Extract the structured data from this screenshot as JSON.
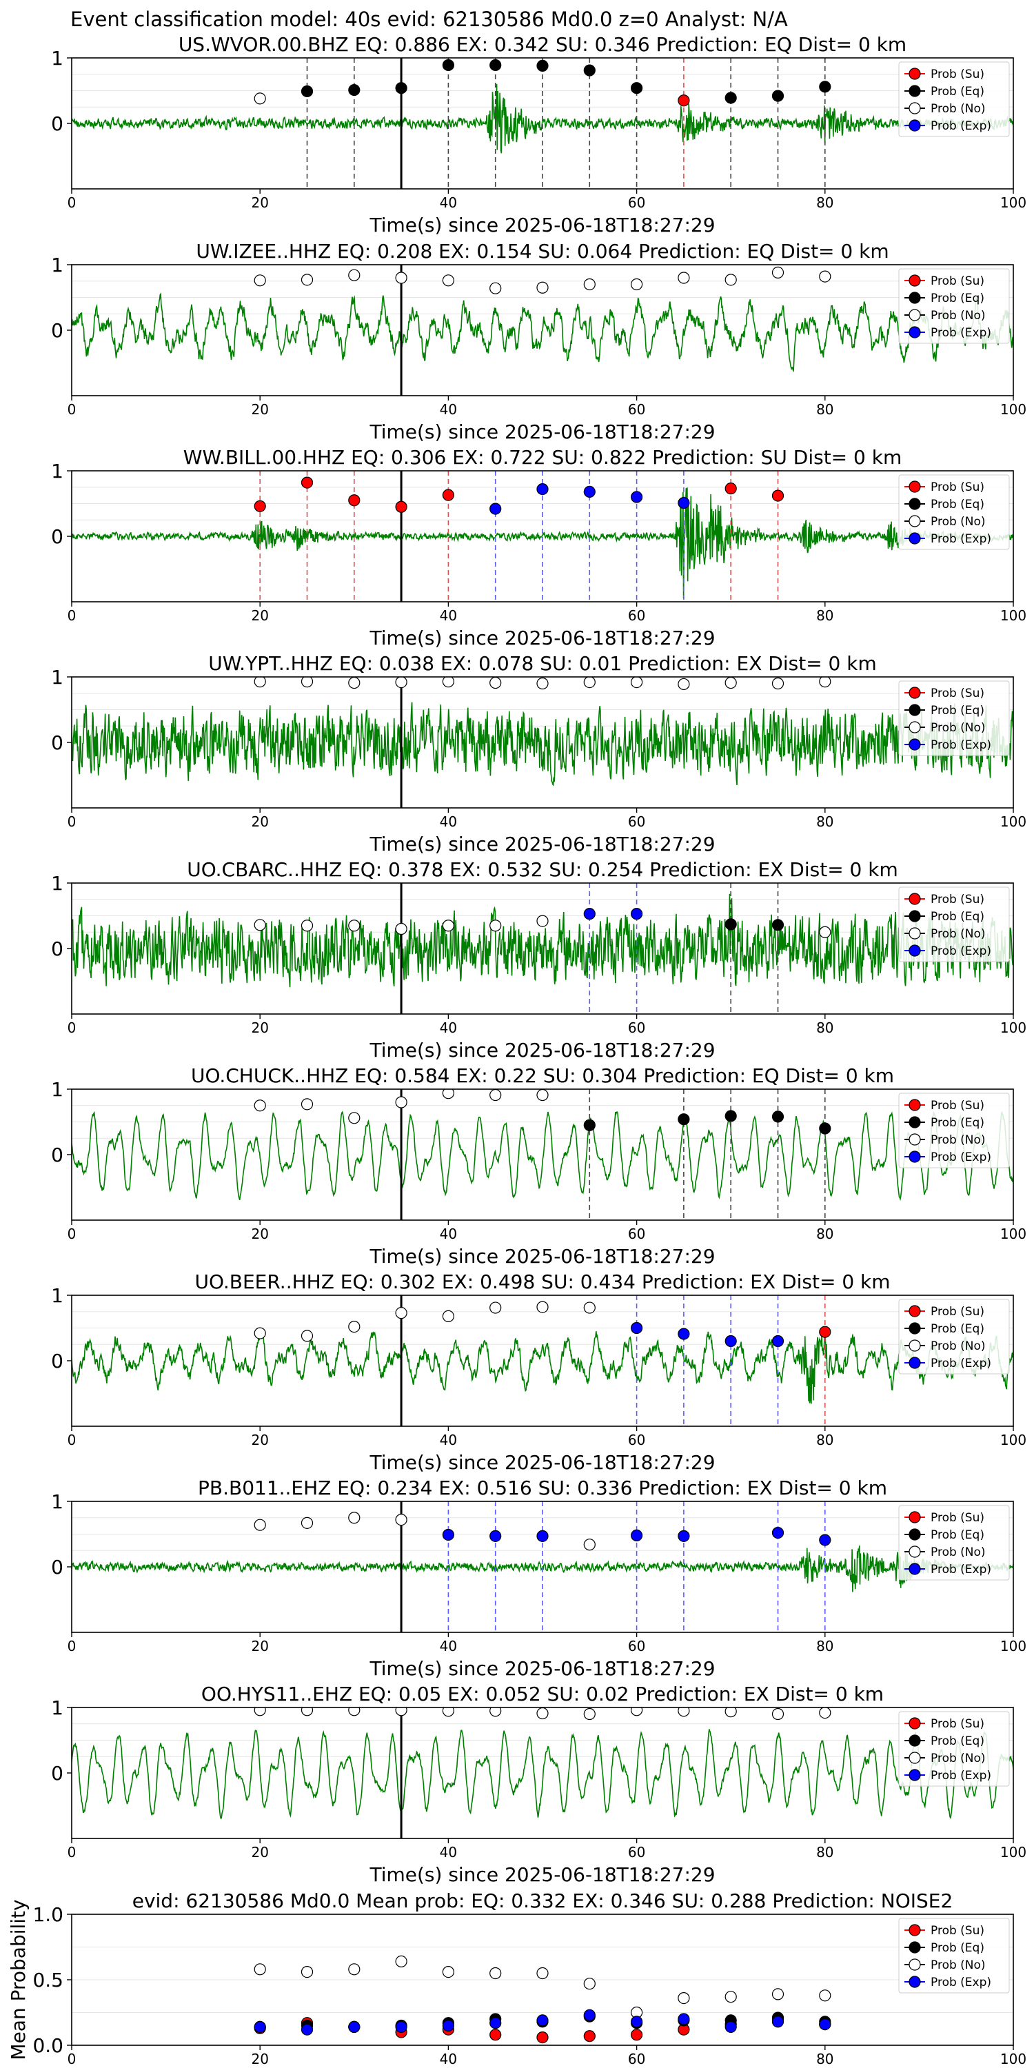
{
  "page_title": "Event classification model: 40s evid: 62130586 Md0.0 z=0 Analyst: N/A",
  "x_axis_label": "Time(s) since 2025-06-18T18:27:29",
  "legend": [
    "Prob (Su)",
    "Prob (Eq)",
    "Prob (No)",
    "Prob (Exp)"
  ],
  "colors": {
    "trace": "#008000",
    "su": "#ff0000",
    "eq": "#000000",
    "no": "#ffffff",
    "exp": "#0000ff",
    "su_line": "#e05050",
    "eq_line": "#444444",
    "exp_line": "#5a5aff"
  },
  "chart_data": [
    {
      "type": "scatter",
      "title": "US.WVOR.00.BHZ   EQ: 0.886  EX: 0.342  SU: 0.346   Prediction: EQ    Dist= 0 km",
      "xlim": [
        0,
        100
      ],
      "ylim": [
        -1,
        1
      ],
      "yticks": [
        "1",
        "0"
      ],
      "xticks": [
        "0",
        "20",
        "40",
        "60",
        "80",
        "100"
      ],
      "xlabel": "Time(s) since 2025-06-18T18:27:29",
      "legend_position": "top-right",
      "origin_line_x": 35,
      "waveform": {
        "amp": 0.07,
        "style": "noise",
        "bursts": [
          [
            45,
            0.7
          ],
          [
            65,
            0.35
          ],
          [
            80,
            0.35
          ]
        ]
      },
      "points": [
        {
          "x": 20,
          "y": 0.38,
          "class": "no"
        },
        {
          "x": 25,
          "y": 0.49,
          "class": "eq"
        },
        {
          "x": 30,
          "y": 0.51,
          "class": "eq"
        },
        {
          "x": 35,
          "y": 0.54,
          "class": "eq"
        },
        {
          "x": 40,
          "y": 0.89,
          "class": "eq"
        },
        {
          "x": 45,
          "y": 0.89,
          "class": "eq"
        },
        {
          "x": 50,
          "y": 0.88,
          "class": "eq"
        },
        {
          "x": 55,
          "y": 0.81,
          "class": "eq"
        },
        {
          "x": 60,
          "y": 0.54,
          "class": "eq"
        },
        {
          "x": 65,
          "y": 0.35,
          "class": "su"
        },
        {
          "x": 70,
          "y": 0.39,
          "class": "eq"
        },
        {
          "x": 75,
          "y": 0.42,
          "class": "eq"
        },
        {
          "x": 80,
          "y": 0.56,
          "class": "eq"
        }
      ]
    },
    {
      "type": "scatter",
      "title": "UW.IZEE..HHZ  EQ: 0.208  EX: 0.154  SU: 0.064   Prediction: EQ    Dist= 0 km",
      "xlim": [
        0,
        100
      ],
      "ylim": [
        -1,
        1
      ],
      "yticks": [
        "1",
        "0"
      ],
      "xticks": [
        "0",
        "20",
        "40",
        "60",
        "80",
        "100"
      ],
      "xlabel": "Time(s) since 2025-06-18T18:27:29",
      "legend_position": "top-right",
      "origin_line_x": 35,
      "waveform": {
        "amp": 0.42,
        "style": "wave",
        "bursts": []
      },
      "points": [
        {
          "x": 20,
          "y": 0.76,
          "class": "no"
        },
        {
          "x": 25,
          "y": 0.77,
          "class": "no"
        },
        {
          "x": 30,
          "y": 0.84,
          "class": "no"
        },
        {
          "x": 35,
          "y": 0.8,
          "class": "no"
        },
        {
          "x": 40,
          "y": 0.76,
          "class": "no"
        },
        {
          "x": 45,
          "y": 0.64,
          "class": "no"
        },
        {
          "x": 50,
          "y": 0.65,
          "class": "no"
        },
        {
          "x": 55,
          "y": 0.7,
          "class": "no"
        },
        {
          "x": 60,
          "y": 0.7,
          "class": "no"
        },
        {
          "x": 65,
          "y": 0.8,
          "class": "no"
        },
        {
          "x": 70,
          "y": 0.77,
          "class": "no"
        },
        {
          "x": 75,
          "y": 0.88,
          "class": "no"
        },
        {
          "x": 80,
          "y": 0.82,
          "class": "no"
        }
      ]
    },
    {
      "type": "scatter",
      "title": "WW.BILL.00.HHZ   EQ: 0.306  EX: 0.722  SU: 0.822   Prediction: SU    Dist= 0 km",
      "xlim": [
        0,
        100
      ],
      "ylim": [
        -1,
        1
      ],
      "yticks": [
        "1",
        "0"
      ],
      "xticks": [
        "0",
        "20",
        "40",
        "60",
        "80",
        "100"
      ],
      "xlabel": "Time(s) since 2025-06-18T18:27:29",
      "legend_position": "top-right",
      "origin_line_x": 35,
      "waveform": {
        "amp": 0.05,
        "style": "noise",
        "bursts": [
          [
            20,
            0.25
          ],
          [
            24,
            0.2
          ],
          [
            65,
            0.95
          ],
          [
            68,
            0.6
          ],
          [
            78,
            0.25
          ],
          [
            87,
            0.25
          ]
        ]
      },
      "points": [
        {
          "x": 20,
          "y": 0.46,
          "class": "su"
        },
        {
          "x": 25,
          "y": 0.82,
          "class": "su"
        },
        {
          "x": 30,
          "y": 0.55,
          "class": "su"
        },
        {
          "x": 35,
          "y": 0.45,
          "class": "su"
        },
        {
          "x": 40,
          "y": 0.63,
          "class": "su"
        },
        {
          "x": 45,
          "y": 0.42,
          "class": "exp"
        },
        {
          "x": 50,
          "y": 0.72,
          "class": "exp"
        },
        {
          "x": 55,
          "y": 0.68,
          "class": "exp"
        },
        {
          "x": 60,
          "y": 0.6,
          "class": "exp"
        },
        {
          "x": 65,
          "y": 0.51,
          "class": "exp"
        },
        {
          "x": 70,
          "y": 0.73,
          "class": "su"
        },
        {
          "x": 75,
          "y": 0.62,
          "class": "su"
        }
      ]
    },
    {
      "type": "scatter",
      "title": "UW.YPT..HHZ   EQ: 0.038  EX: 0.078  SU: 0.01   Prediction: EX    Dist= 0 km",
      "xlim": [
        0,
        100
      ],
      "ylim": [
        -1,
        1
      ],
      "yticks": [
        "1",
        "0"
      ],
      "xticks": [
        "0",
        "20",
        "40",
        "60",
        "80",
        "100"
      ],
      "xlabel": "Time(s) since 2025-06-18T18:27:29",
      "legend_position": "top-right",
      "origin_line_x": 35,
      "waveform": {
        "amp": 0.45,
        "style": "noise",
        "bursts": []
      },
      "points": [
        {
          "x": 20,
          "y": 0.93,
          "class": "no"
        },
        {
          "x": 25,
          "y": 0.93,
          "class": "no"
        },
        {
          "x": 30,
          "y": 0.91,
          "class": "no"
        },
        {
          "x": 35,
          "y": 0.92,
          "class": "no"
        },
        {
          "x": 40,
          "y": 0.93,
          "class": "no"
        },
        {
          "x": 45,
          "y": 0.91,
          "class": "no"
        },
        {
          "x": 50,
          "y": 0.9,
          "class": "no"
        },
        {
          "x": 55,
          "y": 0.92,
          "class": "no"
        },
        {
          "x": 60,
          "y": 0.92,
          "class": "no"
        },
        {
          "x": 65,
          "y": 0.89,
          "class": "no"
        },
        {
          "x": 70,
          "y": 0.91,
          "class": "no"
        },
        {
          "x": 75,
          "y": 0.9,
          "class": "no"
        },
        {
          "x": 80,
          "y": 0.93,
          "class": "no"
        }
      ]
    },
    {
      "type": "scatter",
      "title": "UO.CBARC..HHZ   EQ: 0.378  EX: 0.532  SU: 0.254   Prediction: EX    Dist= 0 km",
      "xlim": [
        0,
        100
      ],
      "ylim": [
        -1,
        1
      ],
      "yticks": [
        "1",
        "0"
      ],
      "xticks": [
        "0",
        "20",
        "40",
        "60",
        "80",
        "100"
      ],
      "xlabel": "Time(s) since 2025-06-18T18:27:29",
      "legend_position": "top-right",
      "origin_line_x": 35,
      "waveform": {
        "amp": 0.45,
        "style": "noise",
        "bursts": [
          [
            70,
            0.5
          ]
        ]
      },
      "points": [
        {
          "x": 20,
          "y": 0.36,
          "class": "no"
        },
        {
          "x": 25,
          "y": 0.35,
          "class": "no"
        },
        {
          "x": 30,
          "y": 0.35,
          "class": "no"
        },
        {
          "x": 35,
          "y": 0.3,
          "class": "no"
        },
        {
          "x": 40,
          "y": 0.35,
          "class": "no"
        },
        {
          "x": 45,
          "y": 0.35,
          "class": "no"
        },
        {
          "x": 50,
          "y": 0.42,
          "class": "no"
        },
        {
          "x": 55,
          "y": 0.53,
          "class": "exp"
        },
        {
          "x": 60,
          "y": 0.53,
          "class": "exp"
        },
        {
          "x": 70,
          "y": 0.37,
          "class": "eq"
        },
        {
          "x": 75,
          "y": 0.36,
          "class": "eq"
        },
        {
          "x": 80,
          "y": 0.25,
          "class": "no"
        }
      ]
    },
    {
      "type": "scatter",
      "title": "UO.CHUCK..HHZ   EQ: 0.584  EX: 0.22  SU: 0.304   Prediction: EQ    Dist= 0 km",
      "xlim": [
        0,
        100
      ],
      "ylim": [
        -1,
        1
      ],
      "yticks": [
        "1",
        "0"
      ],
      "xticks": [
        "0",
        "20",
        "40",
        "60",
        "80",
        "100"
      ],
      "xlabel": "Time(s) since 2025-06-18T18:27:29",
      "legend_position": "top-right",
      "origin_line_x": 35,
      "waveform": {
        "amp": 0.55,
        "style": "smooth",
        "bursts": []
      },
      "points": [
        {
          "x": 20,
          "y": 0.75,
          "class": "no"
        },
        {
          "x": 25,
          "y": 0.77,
          "class": "no"
        },
        {
          "x": 30,
          "y": 0.56,
          "class": "no"
        },
        {
          "x": 35,
          "y": 0.8,
          "class": "no"
        },
        {
          "x": 40,
          "y": 0.94,
          "class": "no"
        },
        {
          "x": 45,
          "y": 0.91,
          "class": "no"
        },
        {
          "x": 50,
          "y": 0.91,
          "class": "no"
        },
        {
          "x": 55,
          "y": 0.45,
          "class": "eq"
        },
        {
          "x": 65,
          "y": 0.54,
          "class": "eq"
        },
        {
          "x": 70,
          "y": 0.59,
          "class": "eq"
        },
        {
          "x": 75,
          "y": 0.58,
          "class": "eq"
        },
        {
          "x": 80,
          "y": 0.4,
          "class": "eq"
        }
      ]
    },
    {
      "type": "scatter",
      "title": "UO.BEER..HHZ   EQ: 0.302  EX: 0.498  SU: 0.434   Prediction: EX    Dist= 0 km",
      "xlim": [
        0,
        100
      ],
      "ylim": [
        -1,
        1
      ],
      "yticks": [
        "1",
        "0"
      ],
      "xticks": [
        "0",
        "20",
        "40",
        "60",
        "80",
        "100"
      ],
      "xlabel": "Time(s) since 2025-06-18T18:27:29",
      "legend_position": "top-right",
      "origin_line_x": 35,
      "waveform": {
        "amp": 0.35,
        "style": "wave",
        "bursts": [
          [
            78,
            0.5
          ]
        ]
      },
      "points": [
        {
          "x": 20,
          "y": 0.42,
          "class": "no"
        },
        {
          "x": 25,
          "y": 0.38,
          "class": "no"
        },
        {
          "x": 30,
          "y": 0.52,
          "class": "no"
        },
        {
          "x": 35,
          "y": 0.73,
          "class": "no"
        },
        {
          "x": 40,
          "y": 0.68,
          "class": "no"
        },
        {
          "x": 45,
          "y": 0.81,
          "class": "no"
        },
        {
          "x": 50,
          "y": 0.82,
          "class": "no"
        },
        {
          "x": 55,
          "y": 0.81,
          "class": "no"
        },
        {
          "x": 60,
          "y": 0.5,
          "class": "exp"
        },
        {
          "x": 65,
          "y": 0.41,
          "class": "exp"
        },
        {
          "x": 70,
          "y": 0.3,
          "class": "exp"
        },
        {
          "x": 75,
          "y": 0.3,
          "class": "exp"
        },
        {
          "x": 80,
          "y": 0.44,
          "class": "su"
        }
      ]
    },
    {
      "type": "scatter",
      "title": "PB.B011..EHZ   EQ: 0.234  EX: 0.516  SU: 0.336   Prediction: EX    Dist= 0 km",
      "xlim": [
        0,
        100
      ],
      "ylim": [
        -1,
        1
      ],
      "yticks": [
        "1",
        "0"
      ],
      "xticks": [
        "0",
        "20",
        "40",
        "60",
        "80",
        "100"
      ],
      "xlabel": "Time(s) since 2025-06-18T18:27:29",
      "legend_position": "top-right",
      "origin_line_x": 35,
      "waveform": {
        "amp": 0.06,
        "style": "noise",
        "bursts": [
          [
            78,
            0.3
          ],
          [
            83,
            0.45
          ],
          [
            88,
            0.3
          ]
        ]
      },
      "points": [
        {
          "x": 20,
          "y": 0.64,
          "class": "no"
        },
        {
          "x": 25,
          "y": 0.67,
          "class": "no"
        },
        {
          "x": 30,
          "y": 0.75,
          "class": "no"
        },
        {
          "x": 35,
          "y": 0.72,
          "class": "no"
        },
        {
          "x": 40,
          "y": 0.49,
          "class": "exp"
        },
        {
          "x": 45,
          "y": 0.47,
          "class": "exp"
        },
        {
          "x": 50,
          "y": 0.47,
          "class": "exp"
        },
        {
          "x": 55,
          "y": 0.34,
          "class": "no"
        },
        {
          "x": 60,
          "y": 0.48,
          "class": "exp"
        },
        {
          "x": 65,
          "y": 0.47,
          "class": "exp"
        },
        {
          "x": 75,
          "y": 0.52,
          "class": "exp"
        },
        {
          "x": 80,
          "y": 0.41,
          "class": "exp"
        }
      ]
    },
    {
      "type": "scatter",
      "title": "OO.HYS11..EHZ   EQ: 0.05  EX: 0.052  SU: 0.02   Prediction: EX    Dist= 0 km",
      "xlim": [
        0,
        100
      ],
      "ylim": [
        -1,
        1
      ],
      "yticks": [
        "1",
        "0"
      ],
      "xticks": [
        "0",
        "20",
        "40",
        "60",
        "80",
        "100"
      ],
      "xlabel": "Time(s) since 2025-06-18T18:27:29",
      "legend_position": "top-right",
      "origin_line_x": 35,
      "waveform": {
        "amp": 0.55,
        "style": "smooth",
        "bursts": []
      },
      "points": [
        {
          "x": 20,
          "y": 0.96,
          "class": "no"
        },
        {
          "x": 25,
          "y": 0.96,
          "class": "no"
        },
        {
          "x": 30,
          "y": 0.96,
          "class": "no"
        },
        {
          "x": 35,
          "y": 0.96,
          "class": "no"
        },
        {
          "x": 40,
          "y": 0.95,
          "class": "no"
        },
        {
          "x": 45,
          "y": 0.95,
          "class": "no"
        },
        {
          "x": 50,
          "y": 0.91,
          "class": "no"
        },
        {
          "x": 55,
          "y": 0.9,
          "class": "no"
        },
        {
          "x": 60,
          "y": 0.96,
          "class": "no"
        },
        {
          "x": 65,
          "y": 0.95,
          "class": "no"
        },
        {
          "x": 70,
          "y": 0.94,
          "class": "no"
        },
        {
          "x": 75,
          "y": 0.9,
          "class": "no"
        },
        {
          "x": 80,
          "y": 0.92,
          "class": "no"
        }
      ]
    },
    {
      "type": "scatter",
      "title": "evid: 62130586  Md0.0   Mean prob:    EQ: 0.332  EX: 0.346  SU: 0.288   Prediction: NOISE2",
      "xlim": [
        0,
        100
      ],
      "ylim": [
        0,
        1
      ],
      "ylabel": "Mean Probability",
      "yticks": [
        "1.0",
        "0.5",
        "0.0"
      ],
      "xticks": [
        "0",
        "20",
        "40",
        "60",
        "80",
        "100"
      ],
      "legend_position": "top-right",
      "series": [
        {
          "name": "Prob (Su)",
          "x": [
            20,
            25,
            30,
            35,
            40,
            45,
            50,
            55,
            60,
            65,
            70,
            75,
            80
          ],
          "values": [
            0.13,
            0.17,
            0.14,
            0.1,
            0.12,
            0.08,
            0.06,
            0.07,
            0.08,
            0.12,
            0.16,
            0.2,
            0.16
          ]
        },
        {
          "name": "Prob (Eq)",
          "x": [
            20,
            25,
            30,
            35,
            40,
            45,
            50,
            55,
            60,
            65,
            70,
            75,
            80
          ],
          "values": [
            0.14,
            0.15,
            0.14,
            0.15,
            0.17,
            0.2,
            0.18,
            0.22,
            0.17,
            0.19,
            0.19,
            0.21,
            0.18
          ]
        },
        {
          "name": "Prob (No)",
          "x": [
            20,
            25,
            30,
            35,
            40,
            45,
            50,
            55,
            60,
            65,
            70,
            75,
            80
          ],
          "values": [
            0.58,
            0.56,
            0.58,
            0.64,
            0.56,
            0.55,
            0.55,
            0.47,
            0.25,
            0.36,
            0.37,
            0.39,
            0.38
          ]
        },
        {
          "name": "Prob (Exp)",
          "x": [
            20,
            25,
            30,
            35,
            40,
            45,
            50,
            55,
            60,
            65,
            70,
            75,
            80
          ],
          "values": [
            0.14,
            0.12,
            0.14,
            0.14,
            0.15,
            0.17,
            0.19,
            0.23,
            0.18,
            0.2,
            0.14,
            0.18,
            0.16
          ]
        }
      ]
    }
  ]
}
